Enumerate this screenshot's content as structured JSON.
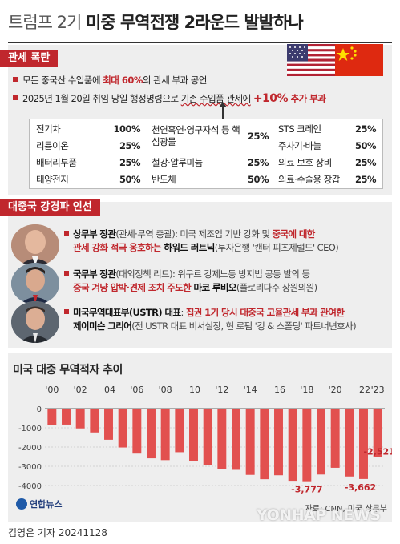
{
  "title": {
    "light": "트럼프 2기",
    "bold": "미중 무역전쟁 2라운드 발발하나"
  },
  "colors": {
    "accent": "#c0272d",
    "bar": "#e2504f",
    "panel": "#eeeeee"
  },
  "tariff_section": {
    "tag": "관세 폭탄",
    "bullet1": {
      "pre": "모든 중국산 수입품에 ",
      "red": "최대 60%",
      "post": "의 관세 부과 공언"
    },
    "bullet2": {
      "pre": "2025년 1월 20일 취임 당일 행정명령으로 ",
      "wavy": "기존 수입품 관세에",
      "plus": "+10%",
      "red": " 추가 부과"
    },
    "items": [
      {
        "name": "전기차",
        "pct": "100%"
      },
      {
        "name": "리튬이온",
        "pct": "25%"
      },
      {
        "name": "배터리부품",
        "pct": "25%"
      },
      {
        "name": "태양전지",
        "pct": "50%"
      },
      {
        "name": "천연흑연·영구자석 등 핵심광물",
        "pct": "25%"
      },
      {
        "name": "철강·알루미늄",
        "pct": "25%"
      },
      {
        "name": "반도체",
        "pct": "50%"
      },
      {
        "name": "STS 크레인",
        "pct": "25%"
      },
      {
        "name": "주사기·바늘",
        "pct": "50%"
      },
      {
        "name": "의료 보호 장비",
        "pct": "25%"
      },
      {
        "name": "의료·수술용 장갑",
        "pct": "25%"
      }
    ]
  },
  "hawks_section": {
    "tag": "대중국 강경파 인선",
    "people": [
      {
        "role": "상무부 장관",
        "role_note": "(관세·무역 총괄): 미국 제조업 기반 강화 및 ",
        "red1": "중국에 대한",
        "red2": "관세 강화 적극 옹호하는",
        "name": " 하워드 러트닉",
        "note": "(투자은행 '캔터 피츠제럴드' CEO)"
      },
      {
        "role": "국무부 장관",
        "role_note": "(대외정책 리드): 위구르 강제노동 방지법 공동 발의 등",
        "red2": "중국 겨냥 압박·견제 조치 주도한",
        "name": " 마코 루비오",
        "note": "(플로리다주 상원의원)"
      },
      {
        "role": "미국무역대표부(USTR) 대표",
        "role_note": ": ",
        "red1": "집권 1기 당시 대중국 고율관세 부과 관여한",
        "name": "제이미슨 그리어",
        "note": "(전 USTR 대표 비서실장, 현 로펌 '킹 & 스폴딩' 파트너변호사)"
      }
    ]
  },
  "chart_data": {
    "type": "bar",
    "title": "미국 대중 무역적자 추이",
    "x": [
      2000,
      2001,
      2002,
      2003,
      2004,
      2005,
      2006,
      2007,
      2008,
      2009,
      2010,
      2011,
      2012,
      2013,
      2014,
      2015,
      2016,
      2017,
      2018,
      2019,
      2020,
      2021,
      2022,
      2023
    ],
    "tick_labels": [
      "'00",
      "'02",
      "'04",
      "'06",
      "'08",
      "'10",
      "'12",
      "'14",
      "'16",
      "'18",
      "'20",
      "'22",
      "'23"
    ],
    "tick_years": [
      2000,
      2002,
      2004,
      2006,
      2008,
      2010,
      2012,
      2014,
      2016,
      2018,
      2020,
      2022,
      2023
    ],
    "values": [
      -838,
      -831,
      -1031,
      -1241,
      -1620,
      -2023,
      -2342,
      -2587,
      -2680,
      -2268,
      -2730,
      -2954,
      -3151,
      -3186,
      -3447,
      -3673,
      -3468,
      -3754,
      -3777,
      -3429,
      -3080,
      -3532,
      -3662,
      -2521
    ],
    "annotations": [
      {
        "year": 2018,
        "label": "-3,777"
      },
      {
        "year": 2022,
        "label": "-3,662"
      },
      {
        "year": 2023,
        "label": "-2,521"
      }
    ],
    "y_ticks": [
      0,
      -1000,
      -2000,
      -3000,
      -4000
    ],
    "y_tick_labels": [
      "0",
      "-1000",
      "-2000",
      "-3000",
      "-4000"
    ],
    "ylim": [
      -4000,
      0
    ],
    "grid": true
  },
  "footer": {
    "source": "자료: CNN, 미국 상무부",
    "logo": "연합뉴스",
    "byline": "김영은 기자  20241128",
    "watermark": "YONHAP NEWS"
  }
}
